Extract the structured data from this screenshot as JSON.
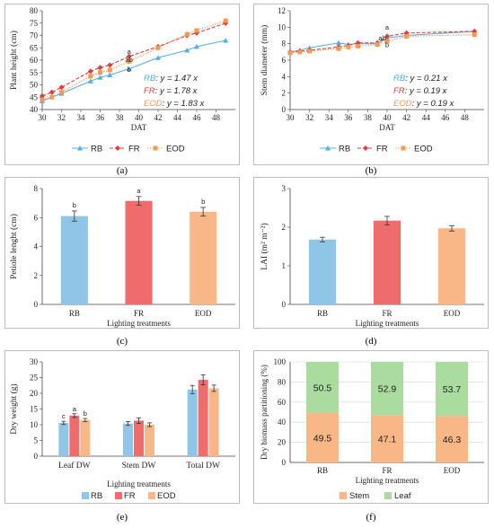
{
  "captions": [
    "(a)",
    "(b)",
    "(c)",
    "(d)",
    "(e)",
    "(f)"
  ],
  "colors": {
    "RB": "#8fc6e8",
    "FR": "#f06b6b",
    "EOD": "#f9b686",
    "RB_line": "#55aee0",
    "FR_line": "#e23b3b",
    "EOD_line": "#f39a55",
    "Stem": "#f9b686",
    "Leaf": "#a9dc9e"
  },
  "chart_data": [
    {
      "id": "a",
      "type": "line",
      "ylabel": "Plant height (cm)",
      "xlabel": "DAT",
      "xlim": [
        30,
        50
      ],
      "ylim": [
        40,
        80
      ],
      "xticks": [
        "30",
        "32",
        "34",
        "36",
        "38",
        "40",
        "42",
        "44",
        "46",
        "48"
      ],
      "yticks": [
        "40",
        "45",
        "50",
        "55",
        "60",
        "65",
        "70",
        "75",
        "80"
      ],
      "legend": [
        "RB",
        "FR",
        "EOD"
      ],
      "legend_position": "bottom",
      "series": [
        {
          "name": "RB",
          "marker": "triangle",
          "x": [
            30,
            32,
            35,
            36,
            37,
            39,
            42,
            45,
            46,
            49
          ],
          "y": [
            43.5,
            46.5,
            51.5,
            53,
            54,
            56.5,
            61,
            64,
            65.5,
            68
          ]
        },
        {
          "name": "FR",
          "marker": "diamond",
          "x": [
            30,
            31,
            32,
            35,
            36,
            37,
            39,
            42,
            45,
            46,
            49
          ],
          "y": [
            45.5,
            47,
            49,
            55.5,
            57,
            58,
            61.5,
            65.5,
            70,
            71,
            75
          ]
        },
        {
          "name": "EOD",
          "marker": "square",
          "x": [
            30,
            31,
            32,
            35,
            36,
            37,
            39,
            42,
            45,
            46,
            49
          ],
          "y": [
            44,
            45,
            47,
            53.5,
            55,
            56,
            59.5,
            65,
            70.5,
            72,
            76
          ]
        }
      ],
      "equations": [
        {
          "name": "RB",
          "text": ":  y = 1.47 x"
        },
        {
          "name": "FR",
          "text": ":  y = 1.78 x"
        },
        {
          "name": "EOD",
          "text": ": y = 1.83 x"
        }
      ],
      "annotations": [
        {
          "text": "a",
          "x": 39,
          "y": 62.5
        },
        {
          "text": "ab",
          "x": 39,
          "y": 59.3
        },
        {
          "text": "b",
          "x": 39,
          "y": 55.3
        }
      ]
    },
    {
      "id": "b",
      "type": "line",
      "ylabel": "Stem diameter (mm)",
      "xlabel": "DAT",
      "xlim": [
        30,
        50
      ],
      "ylim": [
        0,
        12
      ],
      "xticks": [
        "30",
        "32",
        "34",
        "36",
        "38",
        "40",
        "42",
        "44",
        "46",
        "48"
      ],
      "yticks": [
        "0",
        "2",
        "4",
        "6",
        "8",
        "10",
        "12"
      ],
      "legend": [
        "RB",
        "FR",
        "EOD"
      ],
      "legend_position": "bottom",
      "series": [
        {
          "name": "RB",
          "marker": "triangle",
          "x": [
            30,
            31,
            32,
            35,
            36,
            37,
            39,
            40,
            42,
            49
          ],
          "y": [
            7.0,
            7.2,
            7.5,
            8.1,
            7.9,
            8.0,
            8.0,
            8.7,
            9.0,
            9.5
          ]
        },
        {
          "name": "FR",
          "marker": "diamond",
          "x": [
            30,
            31,
            32,
            35,
            36,
            37,
            39,
            40,
            42,
            49
          ],
          "y": [
            7.0,
            7.1,
            7.2,
            7.6,
            7.8,
            8.1,
            8.1,
            8.9,
            9.3,
            9.5
          ]
        },
        {
          "name": "EOD",
          "marker": "square",
          "x": [
            30,
            31,
            32,
            35,
            36,
            37,
            39,
            40,
            42,
            49
          ],
          "y": [
            6.9,
            7.0,
            7.1,
            7.4,
            7.6,
            7.7,
            7.9,
            8.3,
            8.9,
            9.1
          ]
        }
      ],
      "equations": [
        {
          "name": "RB",
          "text": ": y = 0.21 x"
        },
        {
          "name": "FR",
          "text": ": y = 0.19 x"
        },
        {
          "name": "EOD",
          "text": ": y = 0.19 x"
        }
      ],
      "annotations": [
        {
          "text": "a",
          "x": 40,
          "y": 9.7
        },
        {
          "text": "ab",
          "x": 39.5,
          "y": 8.4
        },
        {
          "text": "b",
          "x": 40,
          "y": 7.6
        }
      ]
    },
    {
      "id": "c",
      "type": "bar",
      "ylabel": "Petiole lenght (cm)",
      "xlabel": "Lighting treatments",
      "categories": [
        "RB",
        "FR",
        "EOD"
      ],
      "values": [
        6.1,
        7.15,
        6.4
      ],
      "errors": [
        0.35,
        0.3,
        0.3
      ],
      "letters": [
        "b",
        "a",
        "b"
      ],
      "ylim": [
        0,
        8
      ],
      "yticks": [
        "0",
        "2",
        "4",
        "6",
        "8"
      ]
    },
    {
      "id": "d",
      "type": "bar",
      "ylabel": "LAI (m² m⁻²)",
      "xlabel": "Lighting treatments",
      "categories": [
        "RB",
        "FR",
        "EOD"
      ],
      "values": [
        1.68,
        2.17,
        1.97
      ],
      "errors": [
        0.06,
        0.11,
        0.07
      ],
      "ylim": [
        0,
        3
      ],
      "yticks": [
        "0",
        "1",
        "2",
        "3"
      ]
    },
    {
      "id": "e",
      "type": "bar",
      "ylabel": "Dry weight (g)",
      "xlabel": "Lighting treatments",
      "categories": [
        "Leaf DW",
        "Stem DW",
        "Total DW"
      ],
      "series": [
        {
          "name": "RB",
          "values": [
            10.6,
            10.4,
            21.2
          ],
          "errors": [
            0.5,
            0.6,
            1.3
          ]
        },
        {
          "name": "FR",
          "values": [
            12.9,
            11.3,
            24.3
          ],
          "errors": [
            0.6,
            0.9,
            1.6
          ]
        },
        {
          "name": "EOD",
          "values": [
            11.5,
            10.0,
            21.6
          ],
          "errors": [
            0.5,
            0.6,
            1.0
          ]
        }
      ],
      "letters": [
        [
          "c",
          "a",
          "b"
        ],
        [
          "",
          "",
          ""
        ],
        [
          "",
          "",
          ""
        ]
      ],
      "ylim": [
        0,
        30
      ],
      "yticks": [
        "0",
        "5",
        "10",
        "15",
        "20",
        "25",
        "30"
      ],
      "legend": [
        "RB",
        "FR",
        "EOD"
      ],
      "legend_position": "bottom"
    },
    {
      "id": "f",
      "type": "bar",
      "stacked": true,
      "ylabel": "Dry biomass partitioning (%)",
      "xlabel": "Lighting treatments",
      "categories": [
        "RB",
        "FR",
        "EOD"
      ],
      "series": [
        {
          "name": "Stem",
          "values": [
            49.5,
            47.1,
            46.3
          ],
          "labels": [
            "49.5",
            "47.1",
            "46.3"
          ]
        },
        {
          "name": "Leaf",
          "values": [
            50.5,
            52.9,
            53.7
          ],
          "labels": [
            "50.5",
            "52.9",
            "53.7"
          ]
        }
      ],
      "ylim": [
        0,
        100
      ],
      "yticks": [
        "0",
        "20",
        "40",
        "60",
        "80",
        "100"
      ],
      "legend": [
        "Stem",
        "Leaf"
      ],
      "legend_position": "bottom"
    }
  ]
}
